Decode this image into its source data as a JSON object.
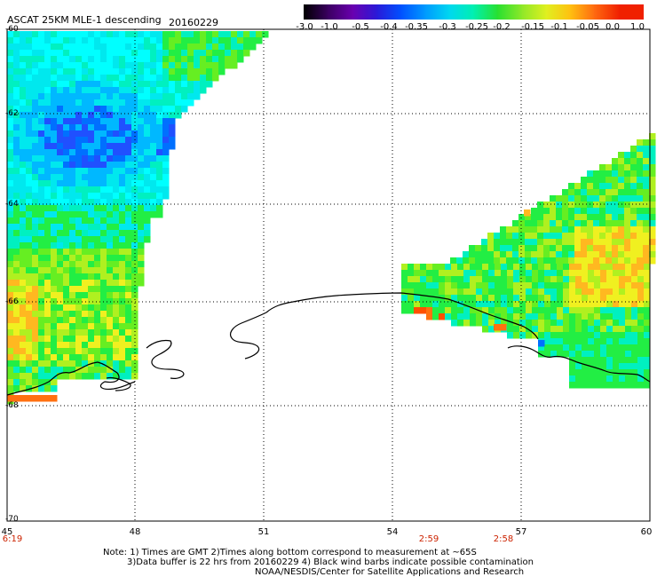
{
  "header": {
    "title": "ASCAT 25KM MLE-1 descending",
    "date": "20160229"
  },
  "colorbar": {
    "labels": [
      "-3.0",
      "-1.0",
      "-0.5",
      "-0.4",
      "-0.35",
      "-0.3",
      "-0.25",
      "-0.2",
      "-0.15",
      "-0.1",
      "-0.05",
      "0.0",
      "1.0"
    ],
    "colors": [
      "#000000",
      "#3a0060",
      "#6a00b0",
      "#2a1ad8",
      "#0050ff",
      "#0098ff",
      "#00d8f0",
      "#00f0b0",
      "#28e030",
      "#90e828",
      "#e0f020",
      "#ffc010",
      "#ff6a10",
      "#f02000"
    ]
  },
  "map": {
    "lat_labels": [
      "-60",
      "-62",
      "-64",
      "-66",
      "-68",
      "-70"
    ],
    "lon_labels": [
      "45",
      "48",
      "51",
      "54",
      "57",
      "60"
    ],
    "time_labels": [
      "6:19",
      "2:59",
      "2:58"
    ]
  },
  "notes": {
    "line1": "Note: 1) Times are GMT 2)Times along bottom correspond to measurement at ~65S",
    "line2": "3)Data buffer is 22 hrs from 20160229 4) Black wind barbs indicate possible contamination",
    "line3": "NOAA/NESDIS/Center for Satellite Applications and Research"
  }
}
